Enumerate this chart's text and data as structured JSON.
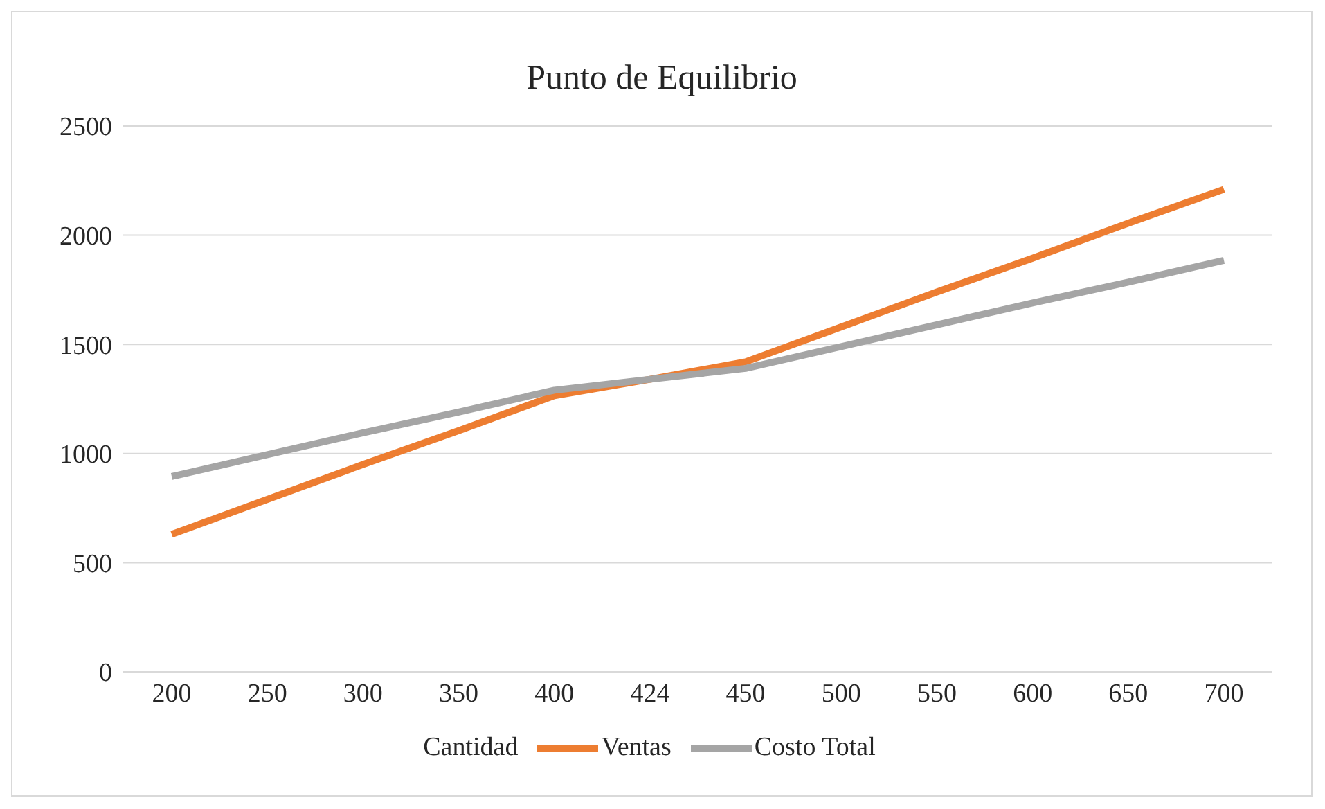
{
  "chart_data": {
    "type": "line",
    "title": "Punto de Equilibrio",
    "legend_title": "Cantidad",
    "categories": [
      "200",
      "250",
      "300",
      "350",
      "400",
      "424",
      "450",
      "500",
      "550",
      "600",
      "650",
      "700"
    ],
    "series": [
      {
        "name": "Ventas",
        "color": "#ed7d31",
        "values": [
          630,
          790,
          950,
          1105,
          1265,
          1340,
          1420,
          1580,
          1740,
          1895,
          2055,
          2210
        ]
      },
      {
        "name": "Costo Total",
        "color": "#a5a5a5",
        "values": [
          895,
          995,
          1095,
          1190,
          1290,
          1340,
          1390,
          1490,
          1590,
          1690,
          1785,
          1885
        ]
      }
    ],
    "ylim": [
      0,
      2500
    ],
    "yticks": [
      0,
      500,
      1000,
      1500,
      2000,
      2500
    ],
    "grid": "y",
    "legend": "bottom",
    "marker": "none",
    "line_style": "solid"
  }
}
